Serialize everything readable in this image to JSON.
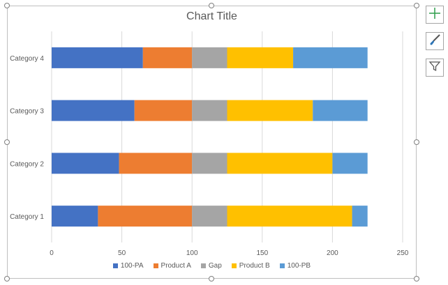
{
  "chart_data": {
    "type": "bar",
    "orientation": "horizontal",
    "stacked": true,
    "title": "Chart Title",
    "categories": [
      "Category 1",
      "Category 2",
      "Category 3",
      "Category 4"
    ],
    "series": [
      {
        "name": "100-PA",
        "color": "#4472c4",
        "values": [
          33,
          48,
          59,
          65
        ]
      },
      {
        "name": "Product A",
        "color": "#ed7d31",
        "values": [
          67,
          52,
          41,
          35
        ]
      },
      {
        "name": "Gap",
        "color": "#a5a5a5",
        "values": [
          25,
          25,
          25,
          25
        ]
      },
      {
        "name": "Product B",
        "color": "#ffc000",
        "values": [
          89,
          75,
          61,
          47
        ]
      },
      {
        "name": "100-PB",
        "color": "#5b9bd5",
        "values": [
          11,
          25,
          39,
          53
        ]
      }
    ],
    "xlim": [
      0,
      250
    ],
    "xticks": [
      0,
      50,
      100,
      150,
      200,
      250
    ],
    "grid": true,
    "legend_position": "bottom"
  },
  "icons": {
    "add": "plus-icon",
    "style": "brush-icon",
    "filter": "funnel-icon"
  }
}
